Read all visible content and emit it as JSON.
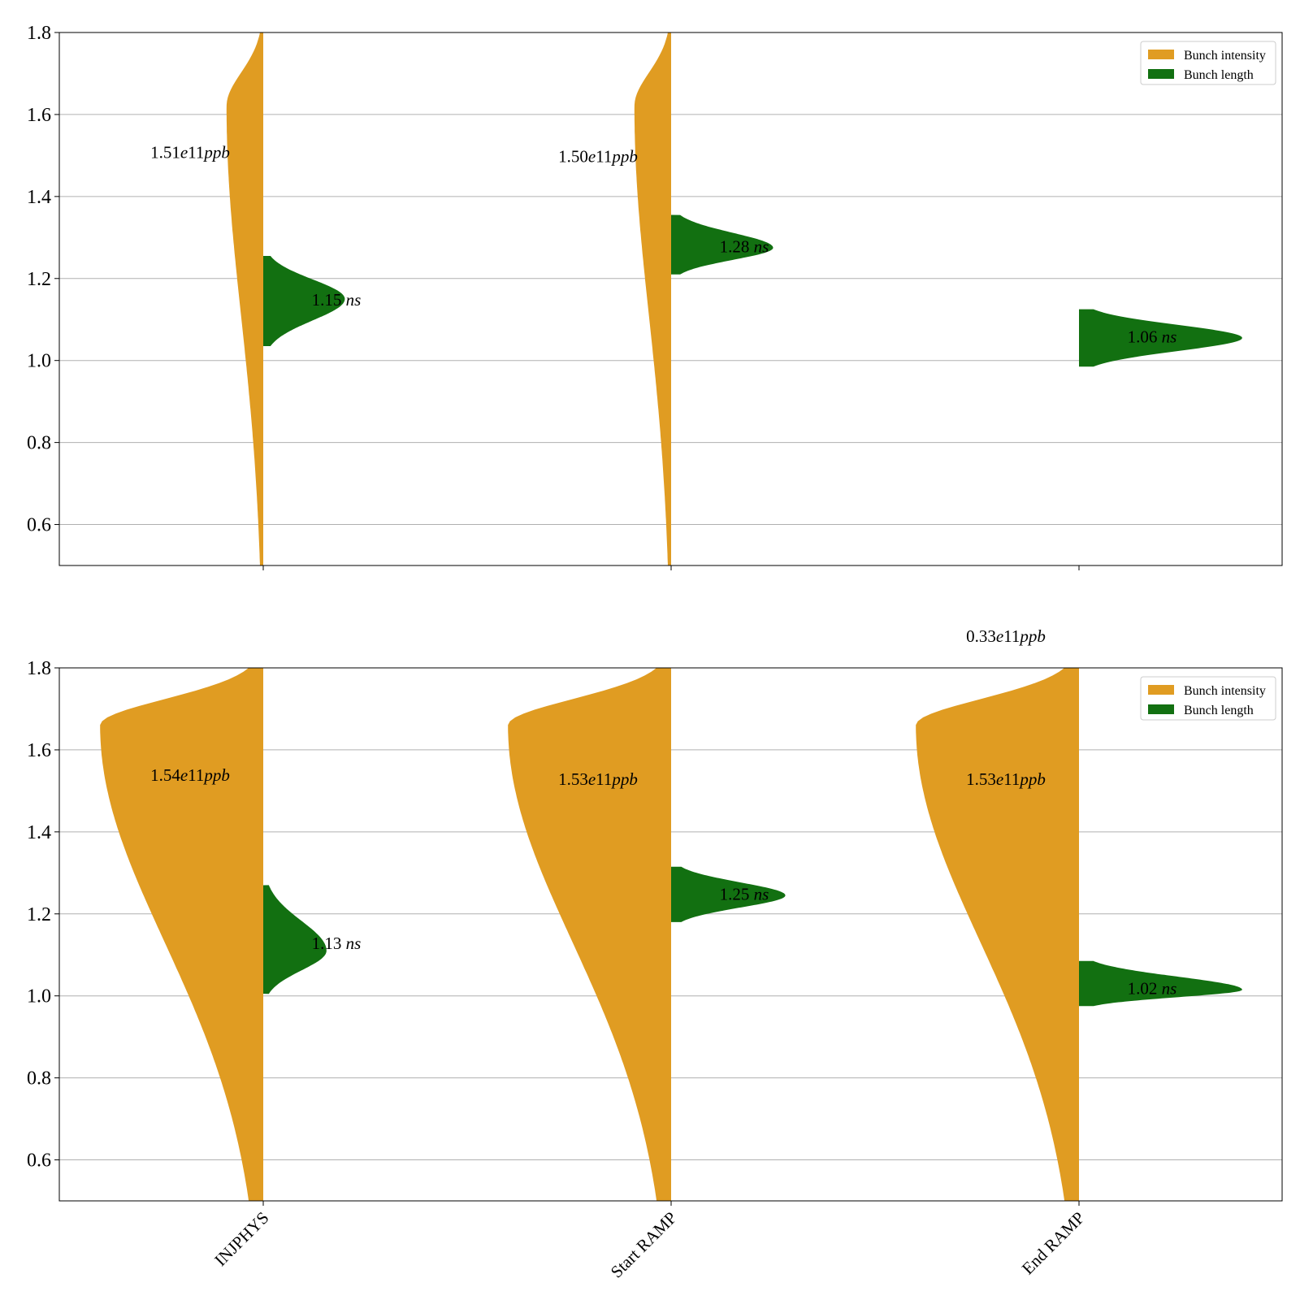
{
  "chart_data": [
    {
      "type": "violin",
      "categories": [
        "INJPHYS",
        "Start RAMP",
        "End RAMP"
      ],
      "ylim": [
        0.5,
        1.8
      ],
      "yticks": [
        "0.6",
        "0.8",
        "1.0",
        "1.2",
        "1.4",
        "1.6",
        "1.8"
      ],
      "grid": true,
      "legend_position": "top-right",
      "colors": {
        "intensity": "#e09c22",
        "length": "#127011"
      },
      "legend": [
        "Bunch intensity",
        "Bunch length"
      ],
      "show_xticklabels": false,
      "series": [
        {
          "name": "Bunch intensity",
          "side": "left",
          "violins": [
            {
              "category": "INJPHYS",
              "mode": 1.62,
              "width": 0.09,
              "min": 0.5,
              "max": 1.8,
              "label_value": "1.51",
              "label_y": 1.51
            },
            {
              "category": "Start RAMP",
              "mode": 1.62,
              "width": 0.09,
              "min": 0.5,
              "max": 1.8,
              "label_value": "1.50",
              "label_y": 1.5
            },
            {
              "category": "End RAMP",
              "mode": null,
              "width": 0,
              "min": null,
              "max": null,
              "label_value": "0.33",
              "label_y": 0.33
            }
          ]
        },
        {
          "name": "Bunch length",
          "side": "right",
          "violins": [
            {
              "category": "INJPHYS",
              "mode": 1.15,
              "width": 0.2,
              "min": 1.035,
              "max": 1.255,
              "label_value": "1.15",
              "label_y": 1.15
            },
            {
              "category": "Start RAMP",
              "mode": 1.275,
              "width": 0.25,
              "min": 1.21,
              "max": 1.355,
              "label_value": "1.28",
              "label_y": 1.28
            },
            {
              "category": "End RAMP",
              "mode": 1.055,
              "width": 0.4,
              "min": 0.985,
              "max": 1.125,
              "label_value": "1.06",
              "label_y": 1.06
            }
          ]
        }
      ]
    },
    {
      "type": "violin",
      "categories": [
        "INJPHYS",
        "Start RAMP",
        "End RAMP"
      ],
      "ylim": [
        0.5,
        1.8
      ],
      "yticks": [
        "0.6",
        "0.8",
        "1.0",
        "1.2",
        "1.4",
        "1.6",
        "1.8"
      ],
      "grid": true,
      "legend_position": "top-right",
      "colors": {
        "intensity": "#e09c22",
        "length": "#127011"
      },
      "legend": [
        "Bunch intensity",
        "Bunch length"
      ],
      "show_xticklabels": true,
      "series": [
        {
          "name": "Bunch intensity",
          "side": "left",
          "violins": [
            {
              "category": "INJPHYS",
              "mode": 1.66,
              "width": 0.4,
              "min": 0.5,
              "max": 1.8,
              "label_value": "1.54",
              "label_y": 1.54
            },
            {
              "category": "Start RAMP",
              "mode": 1.66,
              "width": 0.4,
              "min": 0.5,
              "max": 1.8,
              "label_value": "1.53",
              "label_y": 1.53
            },
            {
              "category": "End RAMP",
              "mode": 1.66,
              "width": 0.4,
              "min": 0.5,
              "max": 1.8,
              "label_value": "1.53",
              "label_y": 1.53
            }
          ]
        },
        {
          "name": "Bunch length",
          "side": "right",
          "violins": [
            {
              "category": "INJPHYS",
              "mode": 1.11,
              "width": 0.155,
              "min": 1.005,
              "max": 1.27,
              "label_value": "1.13",
              "label_y": 1.13
            },
            {
              "category": "Start RAMP",
              "mode": 1.245,
              "width": 0.28,
              "min": 1.18,
              "max": 1.315,
              "label_value": "1.25",
              "label_y": 1.25
            },
            {
              "category": "End RAMP",
              "mode": 1.015,
              "width": 0.4,
              "min": 0.975,
              "max": 1.085,
              "label_value": "1.02",
              "label_y": 1.02
            }
          ]
        }
      ]
    }
  ],
  "annotation_suffixes": {
    "intensity_mid": "e",
    "intensity_exp": "11",
    "intensity_unit": "ppb",
    "length_unit": "ns"
  }
}
